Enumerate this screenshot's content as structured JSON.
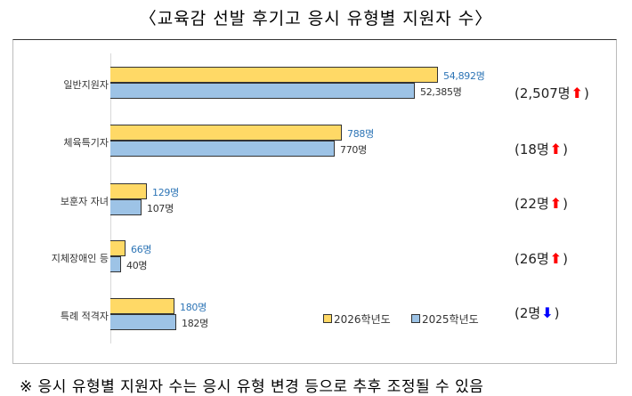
{
  "title": "〈교육감 선발 후기고 응시 유형별 지원자 수〉",
  "footnote": "※ 응시 유형별 지원자 수는 응시 유형 변경 등으로 추후 조정될 수 있음",
  "chart_data": {
    "type": "bar",
    "orientation": "horizontal",
    "categories": [
      "일반지원자",
      "체육특기자",
      "보훈자 자녀",
      "지체장애인 등",
      "특례 적격자"
    ],
    "series": [
      {
        "name": "2026학년도",
        "values": [
          54892,
          788,
          129,
          66,
          180
        ],
        "labels": [
          "54,892명",
          "788명",
          "129명",
          "66명",
          "180명"
        ],
        "color": "#ffd966",
        "label_color": "#2e75b6"
      },
      {
        "name": "2025학년도",
        "values": [
          52385,
          770,
          107,
          40,
          182
        ],
        "labels": [
          "52,385명",
          "770명",
          "107명",
          "40명",
          "182명"
        ],
        "color": "#9dc3e6",
        "label_color": "#333333"
      }
    ],
    "differences": [
      {
        "text": "(2,507명",
        "direction": "up",
        "close": ")"
      },
      {
        "text": "(18명",
        "direction": "up",
        "close": ")"
      },
      {
        "text": "(22명",
        "direction": "up",
        "close": ")"
      },
      {
        "text": "(26명",
        "direction": "up",
        "close": ")"
      },
      {
        "text": "(2명",
        "direction": "down",
        "close": ")"
      }
    ],
    "arrow_colors": {
      "up": "#ff0000",
      "down": "#0000ff"
    },
    "legend": "bottom-right",
    "grid": false
  }
}
